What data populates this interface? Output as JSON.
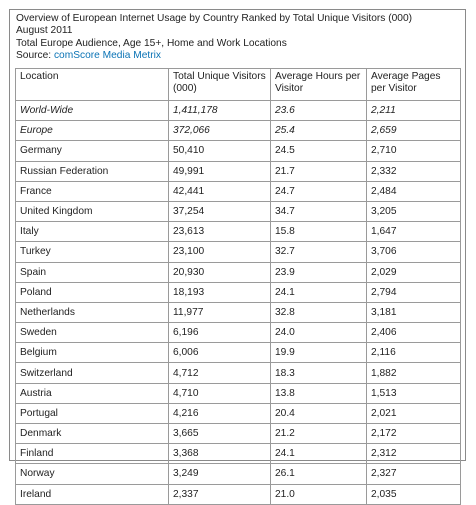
{
  "header": {
    "title": "Overview of European Internet Usage by Country Ranked by Total Unique Visitors (000)",
    "date": "August 2011",
    "audience": "Total Europe Audience, Age 15+, Home and Work Locations",
    "source_label": "Source: ",
    "source_link": "comScore Media Metrix"
  },
  "table": {
    "columns": [
      "Location",
      "Total Unique Visitors (000)",
      "Average Hours per Visitor",
      "Average Pages per Visitor"
    ],
    "rows": [
      {
        "location": "World-Wide",
        "visitors": "1,411,178",
        "hours": "23.6",
        "pages": "2,211",
        "italic": true
      },
      {
        "location": "Europe",
        "visitors": "372,066",
        "hours": "25.4",
        "pages": "2,659",
        "italic": true
      },
      {
        "location": "Germany",
        "visitors": "50,410",
        "hours": "24.5",
        "pages": "2,710",
        "italic": false
      },
      {
        "location": "Russian Federation",
        "visitors": "49,991",
        "hours": "21.7",
        "pages": "2,332",
        "italic": false
      },
      {
        "location": "France",
        "visitors": "42,441",
        "hours": "24.7",
        "pages": "2,484",
        "italic": false
      },
      {
        "location": "United Kingdom",
        "visitors": "37,254",
        "hours": "34.7",
        "pages": "3,205",
        "italic": false
      },
      {
        "location": "Italy",
        "visitors": "23,613",
        "hours": "15.8",
        "pages": "1,647",
        "italic": false
      },
      {
        "location": "Turkey",
        "visitors": "23,100",
        "hours": "32.7",
        "pages": "3,706",
        "italic": false
      },
      {
        "location": "Spain",
        "visitors": "20,930",
        "hours": "23.9",
        "pages": "2,029",
        "italic": false
      },
      {
        "location": "Poland",
        "visitors": "18,193",
        "hours": "24.1",
        "pages": "2,794",
        "italic": false
      },
      {
        "location": "Netherlands",
        "visitors": "11,977",
        "hours": "32.8",
        "pages": "3,181",
        "italic": false
      },
      {
        "location": "Sweden",
        "visitors": "6,196",
        "hours": "24.0",
        "pages": "2,406",
        "italic": false
      },
      {
        "location": "Belgium",
        "visitors": "6,006",
        "hours": "19.9",
        "pages": "2,116",
        "italic": false
      },
      {
        "location": "Switzerland",
        "visitors": "4,712",
        "hours": "18.3",
        "pages": "1,882",
        "italic": false
      },
      {
        "location": "Austria",
        "visitors": "4,710",
        "hours": "13.8",
        "pages": "1,513",
        "italic": false
      },
      {
        "location": "Portugal",
        "visitors": "4,216",
        "hours": "20.4",
        "pages": "2,021",
        "italic": false
      },
      {
        "location": "Denmark",
        "visitors": "3,665",
        "hours": "21.2",
        "pages": "2,172",
        "italic": false
      },
      {
        "location": "Finland",
        "visitors": "3,368",
        "hours": "24.1",
        "pages": "2,312",
        "italic": false
      },
      {
        "location": "Norway",
        "visitors": "3,249",
        "hours": "26.1",
        "pages": "2,327",
        "italic": false
      },
      {
        "location": "Ireland",
        "visitors": "2,337",
        "hours": "21.0",
        "pages": "2,035",
        "italic": false
      }
    ]
  },
  "colors": {
    "link": "#0a73b5",
    "border": "#9a9a9a",
    "text": "#222222"
  }
}
